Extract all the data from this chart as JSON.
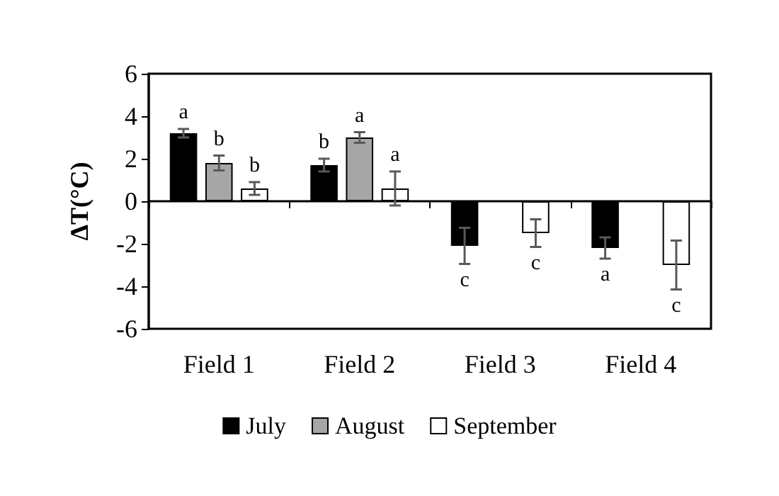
{
  "chart_data": {
    "type": "bar",
    "ylabel": "ΔT(°C)",
    "categories": [
      "Field 1",
      "Field 2",
      "Field 3",
      "Field 4"
    ],
    "series": [
      {
        "name": "July",
        "color": "#000000",
        "values": [
          3.2,
          1.7,
          -2.1,
          -2.2
        ],
        "errors": [
          0.2,
          0.3,
          0.85,
          0.5
        ],
        "value_labels": [
          "a",
          "b",
          "c",
          "a"
        ]
      },
      {
        "name": "August",
        "color": "#a6a6a6",
        "values": [
          1.8,
          3.0,
          null,
          null
        ],
        "errors": [
          0.35,
          0.25,
          null,
          null
        ],
        "value_labels": [
          "b",
          "a",
          null,
          null
        ]
      },
      {
        "name": "September",
        "color": "#ffffff",
        "values": [
          0.6,
          0.6,
          -1.5,
          -3.0
        ],
        "errors": [
          0.3,
          0.8,
          0.65,
          1.15
        ],
        "value_labels": [
          "b",
          "a",
          "c",
          "c"
        ]
      }
    ],
    "ylim": [
      -6,
      6
    ],
    "yticks": [
      -6,
      -4,
      -2,
      0,
      2,
      4,
      6
    ],
    "legend": "bottom"
  }
}
